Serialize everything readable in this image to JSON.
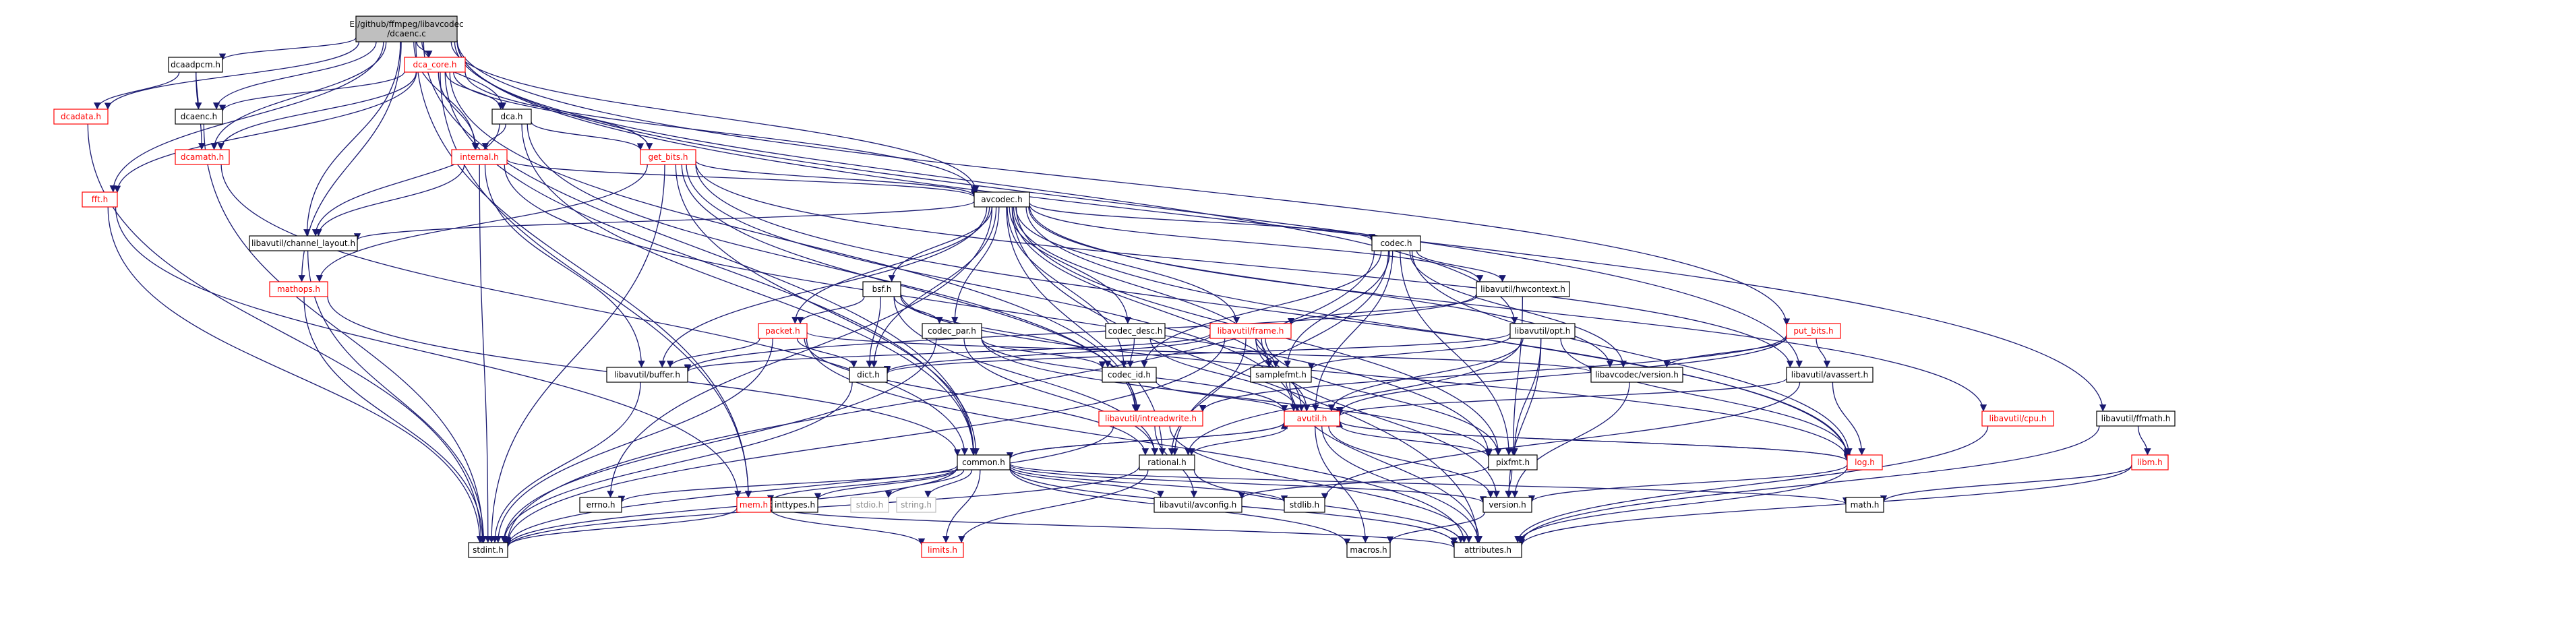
{
  "nodes": [
    {
      "id": "root",
      "label": "E:/github/ffmpeg/libavcodec\n/dcaenc.c",
      "kind": "root"
    },
    {
      "id": "dcaadpcm",
      "label": "dcaadpcm.h",
      "kind": "normal"
    },
    {
      "id": "dca_core",
      "label": "dca_core.h",
      "kind": "red"
    },
    {
      "id": "dcadata",
      "label": "dcadata.h",
      "kind": "red"
    },
    {
      "id": "dcaenc_h",
      "label": "dcaenc.h",
      "kind": "normal"
    },
    {
      "id": "dca_h",
      "label": "dca.h",
      "kind": "normal"
    },
    {
      "id": "dcamath",
      "label": "dcamath.h",
      "kind": "red"
    },
    {
      "id": "internal",
      "label": "internal.h",
      "kind": "red"
    },
    {
      "id": "get_bits",
      "label": "get_bits.h",
      "kind": "red"
    },
    {
      "id": "fft",
      "label": "fft.h",
      "kind": "red"
    },
    {
      "id": "avcodec",
      "label": "avcodec.h",
      "kind": "normal"
    },
    {
      "id": "channel_layout",
      "label": "libavutil/channel_layout.h",
      "kind": "normal"
    },
    {
      "id": "mathops",
      "label": "mathops.h",
      "kind": "red"
    },
    {
      "id": "codec_h",
      "label": "codec.h",
      "kind": "normal"
    },
    {
      "id": "bsf",
      "label": "bsf.h",
      "kind": "normal"
    },
    {
      "id": "hwcontext",
      "label": "libavutil/hwcontext.h",
      "kind": "normal"
    },
    {
      "id": "packet",
      "label": "packet.h",
      "kind": "red"
    },
    {
      "id": "codec_par",
      "label": "codec_par.h",
      "kind": "normal"
    },
    {
      "id": "codec_desc",
      "label": "codec_desc.h",
      "kind": "normal"
    },
    {
      "id": "frame",
      "label": "libavutil/frame.h",
      "kind": "red"
    },
    {
      "id": "opt",
      "label": "libavutil/opt.h",
      "kind": "normal"
    },
    {
      "id": "put_bits",
      "label": "put_bits.h",
      "kind": "red"
    },
    {
      "id": "buffer",
      "label": "libavutil/buffer.h",
      "kind": "normal"
    },
    {
      "id": "dict",
      "label": "dict.h",
      "kind": "normal"
    },
    {
      "id": "codec_id",
      "label": "codec_id.h",
      "kind": "normal"
    },
    {
      "id": "samplefmt",
      "label": "samplefmt.h",
      "kind": "normal"
    },
    {
      "id": "avc_version",
      "label": "libavcodec/version.h",
      "kind": "normal"
    },
    {
      "id": "avassert",
      "label": "libavutil/avassert.h",
      "kind": "normal"
    },
    {
      "id": "cpu",
      "label": "libavutil/cpu.h",
      "kind": "red"
    },
    {
      "id": "ffmath",
      "label": "libavutil/ffmath.h",
      "kind": "normal"
    },
    {
      "id": "intreadwrite",
      "label": "libavutil/intreadwrite.h",
      "kind": "red"
    },
    {
      "id": "avutil",
      "label": "avutil.h",
      "kind": "red"
    },
    {
      "id": "common",
      "label": "common.h",
      "kind": "normal"
    },
    {
      "id": "rational",
      "label": "rational.h",
      "kind": "normal"
    },
    {
      "id": "pixfmt",
      "label": "pixfmt.h",
      "kind": "normal"
    },
    {
      "id": "log",
      "label": "log.h",
      "kind": "red"
    },
    {
      "id": "libm",
      "label": "libm.h",
      "kind": "red"
    },
    {
      "id": "errno",
      "label": "errno.h",
      "kind": "normal"
    },
    {
      "id": "inttypes",
      "label": "inttypes.h",
      "kind": "normal"
    },
    {
      "id": "stdio",
      "label": "stdio.h",
      "kind": "gray"
    },
    {
      "id": "string",
      "label": "string.h",
      "kind": "gray"
    },
    {
      "id": "avconfig",
      "label": "libavutil/avconfig.h",
      "kind": "normal"
    },
    {
      "id": "stdlib",
      "label": "stdlib.h",
      "kind": "normal"
    },
    {
      "id": "util_version",
      "label": "version.h",
      "kind": "normal"
    },
    {
      "id": "math",
      "label": "math.h",
      "kind": "normal"
    },
    {
      "id": "mem",
      "label": "mem.h",
      "kind": "red"
    },
    {
      "id": "stdint",
      "label": "stdint.h",
      "kind": "normal"
    },
    {
      "id": "limits",
      "label": "limits.h",
      "kind": "red"
    },
    {
      "id": "macros",
      "label": "macros.h",
      "kind": "normal"
    },
    {
      "id": "attributes",
      "label": "attributes.h",
      "kind": "normal"
    }
  ],
  "edges": [
    [
      "root",
      "dcaadpcm"
    ],
    [
      "root",
      "dcadata"
    ],
    [
      "root",
      "dca_core"
    ],
    [
      "root",
      "dcaenc_h"
    ],
    [
      "root",
      "dcamath"
    ],
    [
      "root",
      "fft"
    ],
    [
      "root",
      "internal"
    ],
    [
      "root",
      "dca_h"
    ],
    [
      "root",
      "avcodec"
    ],
    [
      "root",
      "channel_layout"
    ],
    [
      "root",
      "mathops"
    ],
    [
      "root",
      "opt"
    ],
    [
      "root",
      "put_bits"
    ],
    [
      "root",
      "avassert"
    ],
    [
      "root",
      "ffmath"
    ],
    [
      "root",
      "common"
    ],
    [
      "root",
      "mem"
    ],
    [
      "dcaadpcm",
      "dcadata"
    ],
    [
      "dcaadpcm",
      "dcamath"
    ],
    [
      "dcaadpcm",
      "dcaenc_h"
    ],
    [
      "dca_core",
      "dca_h"
    ],
    [
      "dca_core",
      "dcamath"
    ],
    [
      "dca_core",
      "internal"
    ],
    [
      "dca_core",
      "get_bits"
    ],
    [
      "dca_core",
      "avcodec"
    ],
    [
      "dca_core",
      "dcaenc_h"
    ],
    [
      "dca_core",
      "fft"
    ],
    [
      "dca_core",
      "mem"
    ],
    [
      "dca_core",
      "common"
    ],
    [
      "dca_core",
      "intreadwrite"
    ],
    [
      "dcadata",
      "stdint"
    ],
    [
      "dcaenc_h",
      "stdint"
    ],
    [
      "dcamath",
      "common"
    ],
    [
      "dca_h",
      "internal"
    ],
    [
      "dca_h",
      "get_bits"
    ],
    [
      "dca_h",
      "channel_layout"
    ],
    [
      "dca_h",
      "intreadwrite"
    ],
    [
      "dca_h",
      "common"
    ],
    [
      "internal",
      "avcodec"
    ],
    [
      "internal",
      "channel_layout"
    ],
    [
      "internal",
      "buffer"
    ],
    [
      "internal",
      "stdint"
    ],
    [
      "internal",
      "pixfmt"
    ],
    [
      "get_bits",
      "avcodec"
    ],
    [
      "get_bits",
      "mathops"
    ],
    [
      "get_bits",
      "stdint"
    ],
    [
      "get_bits",
      "common"
    ],
    [
      "get_bits",
      "intreadwrite"
    ],
    [
      "get_bits",
      "log"
    ],
    [
      "get_bits",
      "avassert"
    ],
    [
      "get_bits",
      "avutil"
    ],
    [
      "fft",
      "stdint"
    ],
    [
      "fft",
      "mem"
    ],
    [
      "avcodec",
      "channel_layout"
    ],
    [
      "avcodec",
      "codec_h"
    ],
    [
      "avcodec",
      "bsf"
    ],
    [
      "avcodec",
      "hwcontext"
    ],
    [
      "avcodec",
      "packet"
    ],
    [
      "avcodec",
      "codec_par"
    ],
    [
      "avcodec",
      "codec_desc"
    ],
    [
      "avcodec",
      "frame"
    ],
    [
      "avcodec",
      "buffer"
    ],
    [
      "avcodec",
      "dict"
    ],
    [
      "avcodec",
      "codec_id"
    ],
    [
      "avcodec",
      "samplefmt"
    ],
    [
      "avcodec",
      "avc_version"
    ],
    [
      "avcodec",
      "avutil"
    ],
    [
      "avcodec",
      "rational"
    ],
    [
      "avcodec",
      "pixfmt"
    ],
    [
      "avcodec",
      "log"
    ],
    [
      "avcodec",
      "attributes"
    ],
    [
      "avcodec",
      "errno"
    ],
    [
      "avcodec",
      "cpu"
    ],
    [
      "channel_layout",
      "stdint"
    ],
    [
      "mathops",
      "common"
    ],
    [
      "mathops",
      "stdint"
    ],
    [
      "codec_h",
      "hwcontext"
    ],
    [
      "codec_h",
      "avc_version"
    ],
    [
      "codec_h",
      "codec_id"
    ],
    [
      "codec_h",
      "samplefmt"
    ],
    [
      "codec_h",
      "avutil"
    ],
    [
      "codec_h",
      "rational"
    ],
    [
      "codec_h",
      "pixfmt"
    ],
    [
      "codec_h",
      "log"
    ],
    [
      "codec_h",
      "stdint"
    ],
    [
      "bsf",
      "packet"
    ],
    [
      "bsf",
      "codec_par"
    ],
    [
      "bsf",
      "codec_id"
    ],
    [
      "bsf",
      "dict"
    ],
    [
      "bsf",
      "rational"
    ],
    [
      "bsf",
      "log"
    ],
    [
      "hwcontext",
      "frame"
    ],
    [
      "hwcontext",
      "buffer"
    ],
    [
      "hwcontext",
      "pixfmt"
    ],
    [
      "packet",
      "buffer"
    ],
    [
      "packet",
      "dict"
    ],
    [
      "packet",
      "avc_version"
    ],
    [
      "packet",
      "rational"
    ],
    [
      "packet",
      "attributes"
    ],
    [
      "packet",
      "stdint"
    ],
    [
      "codec_par",
      "codec_id"
    ],
    [
      "codec_par",
      "avutil"
    ],
    [
      "codec_par",
      "rational"
    ],
    [
      "codec_par",
      "pixfmt"
    ],
    [
      "codec_par",
      "stdint"
    ],
    [
      "codec_desc",
      "codec_id"
    ],
    [
      "codec_desc",
      "avutil"
    ],
    [
      "frame",
      "buffer"
    ],
    [
      "frame",
      "dict"
    ],
    [
      "frame",
      "samplefmt"
    ],
    [
      "frame",
      "avutil"
    ],
    [
      "frame",
      "rational"
    ],
    [
      "frame",
      "pixfmt"
    ],
    [
      "frame",
      "util_version"
    ],
    [
      "frame",
      "stdint"
    ],
    [
      "opt",
      "dict"
    ],
    [
      "opt",
      "samplefmt"
    ],
    [
      "opt",
      "avutil"
    ],
    [
      "opt",
      "rational"
    ],
    [
      "opt",
      "pixfmt"
    ],
    [
      "opt",
      "log"
    ],
    [
      "opt",
      "util_version"
    ],
    [
      "put_bits",
      "avc_version"
    ],
    [
      "put_bits",
      "avassert"
    ],
    [
      "put_bits",
      "intreadwrite"
    ],
    [
      "put_bits",
      "avutil"
    ],
    [
      "buffer",
      "stdint"
    ],
    [
      "dict",
      "stdint"
    ],
    [
      "codec_id",
      "avutil"
    ],
    [
      "samplefmt",
      "avutil"
    ],
    [
      "samplefmt",
      "attributes"
    ],
    [
      "avc_version",
      "util_version"
    ],
    [
      "avassert",
      "avutil"
    ],
    [
      "avassert",
      "log"
    ],
    [
      "avassert",
      "stdlib"
    ],
    [
      "cpu",
      "attributes"
    ],
    [
      "ffmath",
      "libm"
    ],
    [
      "ffmath",
      "attributes"
    ],
    [
      "intreadwrite",
      "avconfig"
    ],
    [
      "intreadwrite",
      "attributes"
    ],
    [
      "intreadwrite",
      "stdint"
    ],
    [
      "intreadwrite",
      "bswap"
    ],
    [
      "avutil",
      "common"
    ],
    [
      "avutil",
      "rational"
    ],
    [
      "avutil",
      "pixfmt"
    ],
    [
      "avutil",
      "log"
    ],
    [
      "avutil",
      "util_version"
    ],
    [
      "avutil",
      "macros"
    ],
    [
      "avutil",
      "attributes"
    ],
    [
      "common",
      "errno"
    ],
    [
      "common",
      "inttypes"
    ],
    [
      "common",
      "stdio"
    ],
    [
      "common",
      "string"
    ],
    [
      "common",
      "limits"
    ],
    [
      "common",
      "math"
    ],
    [
      "common",
      "avconfig"
    ],
    [
      "common",
      "stdlib"
    ],
    [
      "common",
      "attributes"
    ],
    [
      "common",
      "macros"
    ],
    [
      "common",
      "util_version"
    ],
    [
      "common",
      "mem"
    ],
    [
      "common",
      "stdint"
    ],
    [
      "common",
      "avutil"
    ],
    [
      "rational",
      "limits"
    ],
    [
      "rational",
      "attributes"
    ],
    [
      "rational",
      "stdint"
    ],
    [
      "pixfmt",
      "avconfig"
    ],
    [
      "pixfmt",
      "util_version"
    ],
    [
      "log",
      "avutil"
    ],
    [
      "log",
      "attributes"
    ],
    [
      "log",
      "util_version"
    ],
    [
      "libm",
      "math"
    ],
    [
      "libm",
      "attributes"
    ],
    [
      "mem",
      "limits"
    ],
    [
      "mem",
      "attributes"
    ],
    [
      "mem",
      "stdint"
    ],
    [
      "util_version",
      "macros"
    ]
  ]
}
